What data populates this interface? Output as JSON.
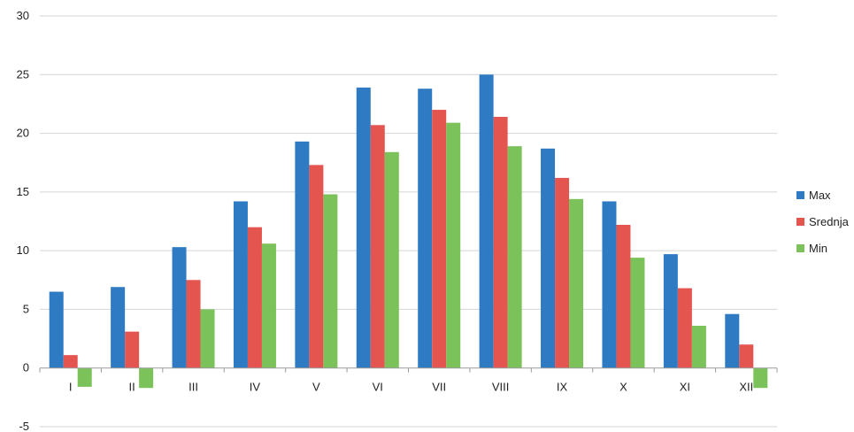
{
  "chart_data": {
    "type": "bar",
    "title": "",
    "xlabel": "",
    "ylabel": "",
    "ylim": [
      -5,
      30
    ],
    "yticks": [
      -5,
      0,
      5,
      10,
      15,
      20,
      25,
      30
    ],
    "grid": true,
    "legend_position": "right",
    "categories": [
      "I",
      "II",
      "III",
      "IV",
      "V",
      "VI",
      "VII",
      "VIII",
      "IX",
      "X",
      "XI",
      "XII"
    ],
    "series": [
      {
        "name": "Max",
        "color": "#2e7bc4",
        "values": [
          6.5,
          6.9,
          10.3,
          14.2,
          19.3,
          23.9,
          23.8,
          25.0,
          18.7,
          14.2,
          9.7,
          4.6
        ]
      },
      {
        "name": "Srednja",
        "color": "#e55550",
        "values": [
          1.1,
          3.1,
          7.5,
          12.0,
          17.3,
          20.7,
          22.0,
          21.4,
          16.2,
          12.2,
          6.8,
          2.0
        ]
      },
      {
        "name": "Min",
        "color": "#7cc25a",
        "values": [
          -1.6,
          -1.7,
          5.0,
          10.6,
          14.8,
          18.4,
          20.9,
          18.9,
          14.4,
          9.4,
          3.6,
          -1.7
        ]
      }
    ]
  }
}
